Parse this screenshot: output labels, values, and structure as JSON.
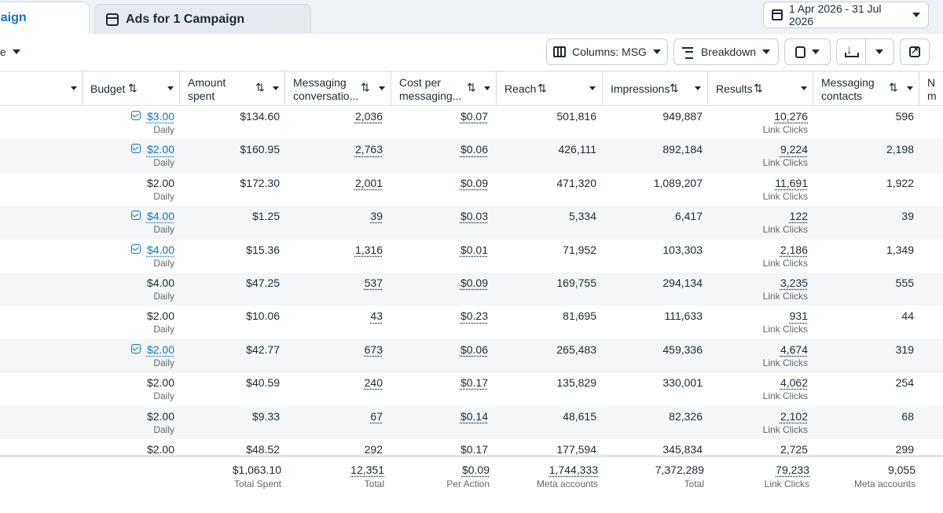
{
  "tabs": [
    {
      "label": "paign"
    },
    {
      "label": "Ads for 1 Campaign"
    }
  ],
  "date_range": "1 Apr 2026 - 31 Jul 2026",
  "toolbar": {
    "left_fragment": "e",
    "columns_label": "Columns: MSG",
    "breakdown_label": "Breakdown"
  },
  "headers": {
    "budget": "Budget",
    "amount_spent_1": "Amount",
    "amount_spent_2": "spent",
    "messaging_conv_1": "Messaging",
    "messaging_conv_2": "conversatio...",
    "cost_per_1": "Cost per",
    "cost_per_2": "messaging...",
    "reach": "Reach",
    "impressions": "Impressions",
    "results": "Results",
    "messaging_contacts_1": "Messaging",
    "messaging_contacts_2": "contacts",
    "next_1": "N",
    "next_2": "m"
  },
  "rows": [
    {
      "budget": "$3.00",
      "budget_link": true,
      "budget_sub": "Daily",
      "spent": "$134.60",
      "conv": "2,036",
      "cost": "$0.07",
      "reach": "501,816",
      "impressions": "949,887",
      "results": "10,276",
      "results_sub": "Link Clicks",
      "contacts": "596"
    },
    {
      "budget": "$2.00",
      "budget_link": true,
      "budget_sub": "Daily",
      "spent": "$160.95",
      "conv": "2,763",
      "cost": "$0.06",
      "reach": "426,111",
      "impressions": "892,184",
      "results": "9,224",
      "results_sub": "Link Clicks",
      "contacts": "2,198"
    },
    {
      "budget": "$2.00",
      "budget_link": false,
      "budget_sub": "Daily",
      "spent": "$172.30",
      "conv": "2,001",
      "cost": "$0.09",
      "reach": "471,320",
      "impressions": "1,089,207",
      "results": "11,691",
      "results_sub": "Link Clicks",
      "contacts": "1,922"
    },
    {
      "budget": "$4.00",
      "budget_link": true,
      "budget_sub": "Daily",
      "spent": "$1.25",
      "conv": "39",
      "cost": "$0.03",
      "reach": "5,334",
      "impressions": "6,417",
      "results": "122",
      "results_sub": "Link Clicks",
      "contacts": "39"
    },
    {
      "budget": "$4.00",
      "budget_link": true,
      "budget_sub": "Daily",
      "spent": "$15.36",
      "conv": "1,316",
      "cost": "$0.01",
      "reach": "71,952",
      "impressions": "103,303",
      "results": "2,186",
      "results_sub": "Link Clicks",
      "contacts": "1,349"
    },
    {
      "budget": "$4.00",
      "budget_link": false,
      "budget_sub": "Daily",
      "spent": "$47.25",
      "conv": "537",
      "cost": "$0.09",
      "reach": "169,755",
      "impressions": "294,134",
      "results": "3,235",
      "results_sub": "Link Clicks",
      "contacts": "555"
    },
    {
      "budget": "$2.00",
      "budget_link": false,
      "budget_sub": "Daily",
      "spent": "$10.06",
      "conv": "43",
      "cost": "$0.23",
      "reach": "81,695",
      "impressions": "111,633",
      "results": "931",
      "results_sub": "Link Clicks",
      "contacts": "44"
    },
    {
      "budget": "$2.00",
      "budget_link": true,
      "budget_sub": "Daily",
      "spent": "$42.77",
      "conv": "673",
      "cost": "$0.06",
      "reach": "265,483",
      "impressions": "459,336",
      "results": "4,674",
      "results_sub": "Link Clicks",
      "contacts": "319"
    },
    {
      "budget": "$2.00",
      "budget_link": false,
      "budget_sub": "Daily",
      "spent": "$40.59",
      "conv": "240",
      "cost": "$0.17",
      "reach": "135,829",
      "impressions": "330,001",
      "results": "4,062",
      "results_sub": "Link Clicks",
      "contacts": "254"
    },
    {
      "budget": "$2.00",
      "budget_link": false,
      "budget_sub": "Daily",
      "spent": "$9.33",
      "conv": "67",
      "cost": "$0.14",
      "reach": "48,615",
      "impressions": "82,326",
      "results": "2,102",
      "results_sub": "Link Clicks",
      "contacts": "68"
    },
    {
      "budget": "$2.00",
      "budget_link": false,
      "budget_sub": "Daily",
      "spent": "$48.52",
      "conv": "292",
      "cost": "$0.17",
      "reach": "177,594",
      "impressions": "345,834",
      "results": "2,725",
      "results_sub": "Link Clicks",
      "contacts": "299"
    }
  ],
  "totals": {
    "spent": "$1,063.10",
    "spent_sub": "Total Spent",
    "conv": "12,351",
    "conv_sub": "Total",
    "cost": "$0.09",
    "cost_sub": "Per Action",
    "reach": "1,744,333",
    "reach_sub": "Meta accounts",
    "impressions": "7,372,289",
    "impressions_sub": "Total",
    "results": "79,233",
    "results_sub": "Link Clicks",
    "contacts": "9,055",
    "contacts_sub": "Meta accounts"
  }
}
